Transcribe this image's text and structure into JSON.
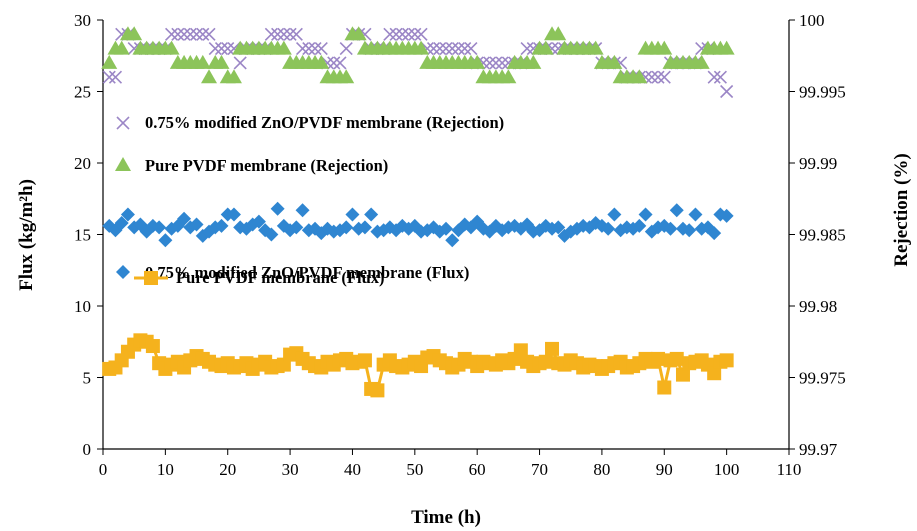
{
  "chart_data": {
    "type": "scatter",
    "xlabel": "Time (h)",
    "ylabel_left": "Flux (kg/m²h)",
    "ylabel_right": "Rejection (%)",
    "xlim": [
      0,
      110
    ],
    "ylim_left": [
      0,
      30
    ],
    "ylim_right": [
      99.97,
      100
    ],
    "x_ticks": [
      "0",
      "10",
      "20",
      "30",
      "40",
      "50",
      "60",
      "70",
      "80",
      "90",
      "100",
      "110"
    ],
    "y_ticks_left": [
      "0",
      "5",
      "10",
      "15",
      "20",
      "25",
      "30"
    ],
    "y_ticks_right": [
      "99.97",
      "99.975",
      "99.98",
      "99.985",
      "99.99",
      "99.995",
      "100"
    ],
    "grid": false,
    "legend": [
      {
        "label": "0.75% modified ZnO/PVDF membrane (Rejection)",
        "marker": "cross",
        "color": "#9b86c6"
      },
      {
        "label": "Pure PVDF membrane (Rejection)",
        "marker": "triangle",
        "color": "#8cc45a"
      },
      {
        "label": "0.75% modified ZnO/PVDF membrane (Flux)",
        "marker": "diamond",
        "color": "#2f86d1"
      },
      {
        "label": "Pure PVDF membrane (Flux)",
        "marker": "square-line",
        "color": "#f5b21d"
      }
    ],
    "series": [
      {
        "name": "0.75% modified ZnO/PVDF membrane (Rejection)",
        "axis": "right",
        "marker": "cross",
        "color": "#9b86c6",
        "x": [
          1,
          2,
          3,
          4,
          5,
          6,
          7,
          8,
          9,
          10,
          11,
          12,
          13,
          14,
          15,
          16,
          17,
          18,
          19,
          20,
          21,
          22,
          23,
          24,
          25,
          26,
          27,
          28,
          29,
          30,
          31,
          32,
          33,
          34,
          35,
          36,
          37,
          38,
          39,
          40,
          41,
          42,
          43,
          44,
          45,
          46,
          47,
          48,
          49,
          50,
          51,
          52,
          53,
          54,
          55,
          56,
          57,
          58,
          59,
          60,
          61,
          62,
          63,
          64,
          65,
          66,
          67,
          68,
          69,
          70,
          71,
          72,
          73,
          74,
          75,
          76,
          77,
          78,
          79,
          80,
          81,
          82,
          83,
          84,
          85,
          86,
          87,
          88,
          89,
          90,
          91,
          92,
          93,
          94,
          95,
          96,
          97,
          98,
          99,
          100
        ],
        "y": [
          99.996,
          99.996,
          99.999,
          99.999,
          99.998,
          99.998,
          99.998,
          99.998,
          99.998,
          99.998,
          99.999,
          99.999,
          99.999,
          99.999,
          99.999,
          99.999,
          99.999,
          99.998,
          99.998,
          99.998,
          99.998,
          99.997,
          99.998,
          99.998,
          99.998,
          99.998,
          99.999,
          99.999,
          99.999,
          99.999,
          99.999,
          99.998,
          99.998,
          99.998,
          99.998,
          99.997,
          99.997,
          99.997,
          99.998,
          99.999,
          99.999,
          99.999,
          99.998,
          99.998,
          99.998,
          99.999,
          99.999,
          99.999,
          99.999,
          99.999,
          99.999,
          99.998,
          99.998,
          99.998,
          99.998,
          99.998,
          99.998,
          99.998,
          99.998,
          99.997,
          99.997,
          99.997,
          99.997,
          99.997,
          99.997,
          99.997,
          99.997,
          99.998,
          99.998,
          99.998,
          99.998,
          99.998,
          99.998,
          99.998,
          99.998,
          99.998,
          99.998,
          99.998,
          99.998,
          99.997,
          99.997,
          99.997,
          99.997,
          99.996,
          99.996,
          99.996,
          99.996,
          99.996,
          99.996,
          99.996,
          99.997,
          99.997,
          99.997,
          99.997,
          99.997,
          99.998,
          99.998,
          99.996,
          99.996,
          99.995
        ]
      },
      {
        "name": "Pure PVDF membrane (Rejection)",
        "axis": "right",
        "marker": "triangle",
        "color": "#8cc45a",
        "x": [
          1,
          2,
          3,
          4,
          5,
          6,
          7,
          8,
          9,
          10,
          11,
          12,
          13,
          14,
          15,
          16,
          17,
          18,
          19,
          20,
          21,
          22,
          23,
          24,
          25,
          26,
          27,
          28,
          29,
          30,
          31,
          32,
          33,
          34,
          35,
          36,
          37,
          38,
          39,
          40,
          41,
          42,
          43,
          44,
          45,
          46,
          47,
          48,
          49,
          50,
          51,
          52,
          53,
          54,
          55,
          56,
          57,
          58,
          59,
          60,
          61,
          62,
          63,
          64,
          65,
          66,
          67,
          68,
          69,
          70,
          71,
          72,
          73,
          74,
          75,
          76,
          77,
          78,
          79,
          80,
          81,
          82,
          83,
          84,
          85,
          86,
          87,
          88,
          89,
          90,
          91,
          92,
          93,
          94,
          95,
          96,
          97,
          98,
          99,
          100
        ],
        "y": [
          99.997,
          99.998,
          99.998,
          99.999,
          99.999,
          99.998,
          99.998,
          99.998,
          99.998,
          99.998,
          99.998,
          99.997,
          99.997,
          99.997,
          99.997,
          99.997,
          99.996,
          99.997,
          99.997,
          99.996,
          99.996,
          99.998,
          99.998,
          99.998,
          99.998,
          99.998,
          99.998,
          99.998,
          99.998,
          99.997,
          99.997,
          99.997,
          99.997,
          99.997,
          99.997,
          99.996,
          99.996,
          99.996,
          99.996,
          99.999,
          99.999,
          99.998,
          99.998,
          99.998,
          99.998,
          99.998,
          99.998,
          99.998,
          99.998,
          99.998,
          99.998,
          99.997,
          99.997,
          99.997,
          99.997,
          99.997,
          99.997,
          99.997,
          99.997,
          99.997,
          99.996,
          99.996,
          99.996,
          99.996,
          99.996,
          99.997,
          99.997,
          99.997,
          99.997,
          99.998,
          99.998,
          99.999,
          99.999,
          99.998,
          99.998,
          99.998,
          99.998,
          99.998,
          99.998,
          99.997,
          99.997,
          99.997,
          99.996,
          99.996,
          99.996,
          99.996,
          99.998,
          99.998,
          99.998,
          99.998,
          99.997,
          99.997,
          99.997,
          99.997,
          99.997,
          99.997,
          99.998,
          99.998,
          99.998,
          99.998
        ]
      },
      {
        "name": "0.75% modified ZnO/PVDF membrane (Flux)",
        "axis": "left",
        "marker": "diamond",
        "color": "#2f86d1",
        "x": [
          1,
          2,
          3,
          4,
          5,
          6,
          7,
          8,
          9,
          10,
          11,
          12,
          13,
          14,
          15,
          16,
          17,
          18,
          19,
          20,
          21,
          22,
          23,
          24,
          25,
          26,
          27,
          28,
          29,
          30,
          31,
          32,
          33,
          34,
          35,
          36,
          37,
          38,
          39,
          40,
          41,
          42,
          43,
          44,
          45,
          46,
          47,
          48,
          49,
          50,
          51,
          52,
          53,
          54,
          55,
          56,
          57,
          58,
          59,
          60,
          61,
          62,
          63,
          64,
          65,
          66,
          67,
          68,
          69,
          70,
          71,
          72,
          73,
          74,
          75,
          76,
          77,
          78,
          79,
          80,
          81,
          82,
          83,
          84,
          85,
          86,
          87,
          88,
          89,
          90,
          91,
          92,
          93,
          94,
          95,
          96,
          97,
          98,
          99,
          100
        ],
        "y": [
          15.6,
          15.3,
          15.8,
          16.4,
          15.5,
          15.7,
          15.2,
          15.6,
          15.5,
          14.6,
          15.4,
          15.6,
          16.1,
          15.5,
          15.7,
          14.9,
          15.2,
          15.5,
          15.6,
          16.4,
          16.4,
          15.5,
          15.4,
          15.7,
          15.9,
          15.3,
          15.0,
          16.8,
          15.6,
          15.3,
          15.5,
          16.7,
          15.3,
          15.4,
          15.1,
          15.4,
          15.2,
          15.3,
          15.5,
          16.4,
          15.4,
          15.5,
          16.4,
          15.2,
          15.3,
          15.5,
          15.3,
          15.6,
          15.4,
          15.6,
          15.2,
          15.3,
          15.5,
          15.2,
          15.4,
          14.6,
          15.3,
          15.7,
          15.5,
          15.9,
          15.4,
          15.2,
          15.6,
          15.3,
          15.5,
          15.6,
          15.4,
          15.7,
          15.2,
          15.3,
          15.6,
          15.4,
          15.5,
          14.9,
          15.2,
          15.4,
          15.6,
          15.5,
          15.8,
          15.6,
          15.4,
          16.4,
          15.3,
          15.5,
          15.4,
          15.6,
          16.4,
          15.2,
          15.5,
          15.6,
          15.4,
          16.7,
          15.4,
          15.3,
          16.4,
          15.4,
          15.5,
          15.1,
          16.4,
          16.3
        ]
      },
      {
        "name": "Pure PVDF membrane (Flux)",
        "axis": "left",
        "marker": "square-line",
        "color": "#f5b21d",
        "x": [
          1,
          2,
          3,
          4,
          5,
          6,
          7,
          8,
          9,
          10,
          11,
          12,
          13,
          14,
          15,
          16,
          17,
          18,
          19,
          20,
          21,
          22,
          23,
          24,
          25,
          26,
          27,
          28,
          29,
          30,
          31,
          32,
          33,
          34,
          35,
          36,
          37,
          38,
          39,
          40,
          41,
          42,
          43,
          44,
          45,
          46,
          47,
          48,
          49,
          50,
          51,
          52,
          53,
          54,
          55,
          56,
          57,
          58,
          59,
          60,
          61,
          62,
          63,
          64,
          65,
          66,
          67,
          68,
          69,
          70,
          71,
          72,
          73,
          74,
          75,
          76,
          77,
          78,
          79,
          80,
          81,
          82,
          83,
          84,
          85,
          86,
          87,
          88,
          89,
          90,
          91,
          92,
          93,
          94,
          95,
          96,
          97,
          98,
          99,
          100
        ],
        "y": [
          5.6,
          5.7,
          6.2,
          6.8,
          7.3,
          7.6,
          7.5,
          7.2,
          6.0,
          5.6,
          5.9,
          6.1,
          5.7,
          6.2,
          6.5,
          6.3,
          6.1,
          5.9,
          5.8,
          6.0,
          5.7,
          5.8,
          6.0,
          5.6,
          5.9,
          6.1,
          5.7,
          5.8,
          5.9,
          6.6,
          6.7,
          6.3,
          6.0,
          5.8,
          5.7,
          6.1,
          5.9,
          6.2,
          6.3,
          6.0,
          6.1,
          6.2,
          4.2,
          4.1,
          5.9,
          6.2,
          5.8,
          5.7,
          5.9,
          6.1,
          5.8,
          6.4,
          6.5,
          6.2,
          6.0,
          5.7,
          5.9,
          6.3,
          6.1,
          5.8,
          6.1,
          6.0,
          5.9,
          6.2,
          6.0,
          6.3,
          6.9,
          6.1,
          5.8,
          6.0,
          6.1,
          7.0,
          6.0,
          5.9,
          6.2,
          6.0,
          5.7,
          5.9,
          5.8,
          5.6,
          5.8,
          6.0,
          6.1,
          5.7,
          5.8,
          6.0,
          6.3,
          6.1,
          6.3,
          4.3,
          6.2,
          6.3,
          5.2,
          6.0,
          6.1,
          6.2,
          5.9,
          5.3,
          6.1,
          6.2
        ]
      }
    ]
  }
}
